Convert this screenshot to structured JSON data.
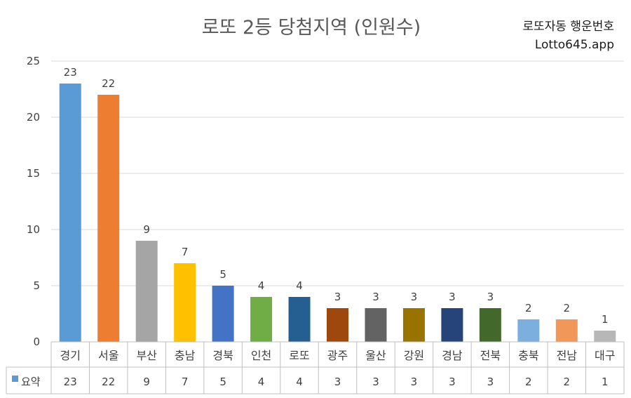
{
  "header": {
    "title": "로또 2등 당첨지역 (인원수)",
    "brand_line1": "로또자동 행운번호",
    "brand_line2": "Lotto645.app"
  },
  "chart_data": {
    "type": "bar",
    "title": "로또 2등 당첨지역 (인원수)",
    "xlabel": "",
    "ylabel": "",
    "ylim": [
      0,
      25
    ],
    "yticks": [
      0,
      5,
      10,
      15,
      20,
      25
    ],
    "grid": true,
    "categories": [
      "경기",
      "서울",
      "부산",
      "충남",
      "경북",
      "인천",
      "로또",
      "광주",
      "울산",
      "강원",
      "경남",
      "전북",
      "충북",
      "전남",
      "대구"
    ],
    "series": [
      {
        "name": "요약",
        "values": [
          23,
          22,
          9,
          7,
          5,
          4,
          4,
          3,
          3,
          3,
          3,
          3,
          2,
          2,
          1
        ]
      }
    ],
    "bar_colors": [
      "#5b9bd5",
      "#ed7d31",
      "#a5a5a5",
      "#ffc000",
      "#4472c4",
      "#70ad47",
      "#255e91",
      "#9e480e",
      "#636363",
      "#997300",
      "#264478",
      "#43682b",
      "#7cafdd",
      "#f1975a",
      "#b7b7b7"
    ],
    "legend_color": "#5b9bd5",
    "data_table": true
  }
}
